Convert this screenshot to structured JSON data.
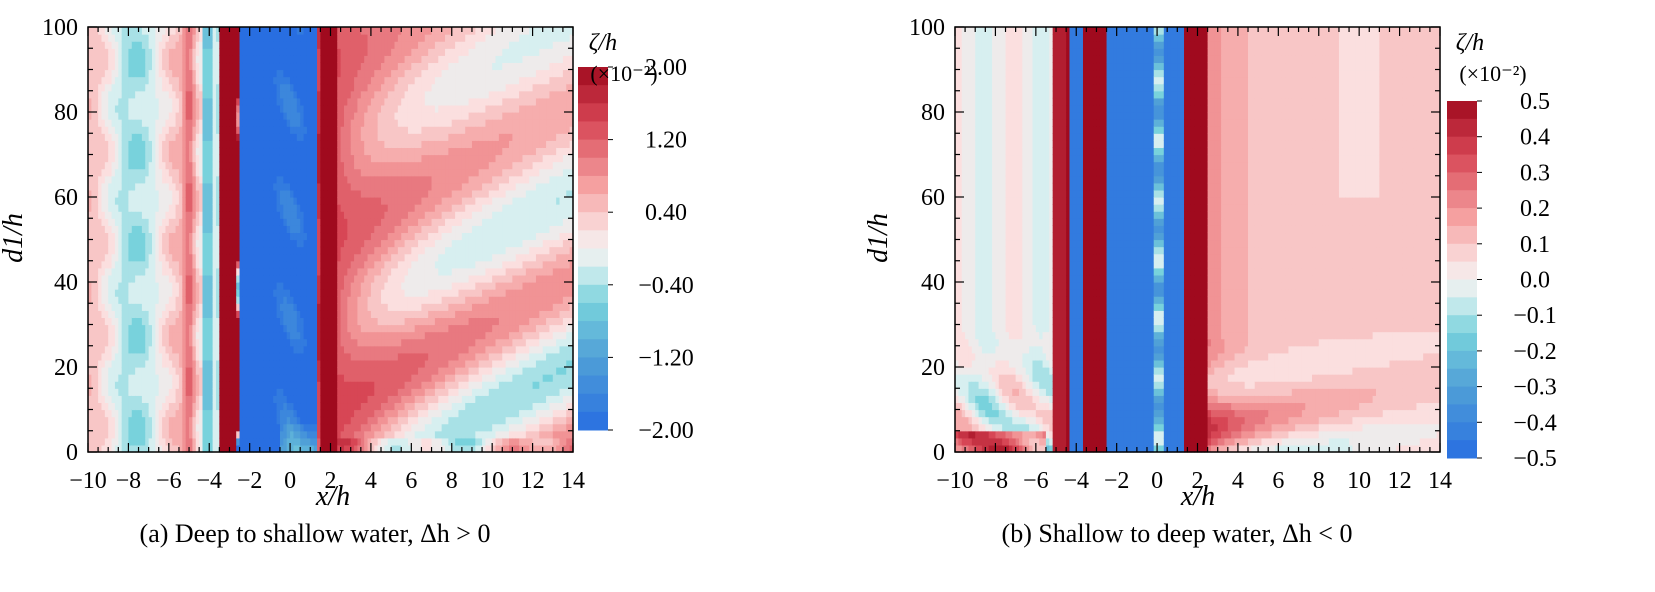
{
  "chart_data": [
    {
      "type": "heatmap",
      "caption": "(a) Deep to shallow water, Δh > 0",
      "xlabel": "x/h",
      "ylabel": "d1/h",
      "xlim": [
        -10,
        14
      ],
      "ylim": [
        0,
        100
      ],
      "xticks": [
        "−10",
        "−8",
        "−6",
        "−4",
        "−2",
        "0",
        "2",
        "4",
        "6",
        "8",
        "10",
        "12",
        "14"
      ],
      "yticks": [
        "0",
        "20",
        "40",
        "60",
        "80",
        "100"
      ],
      "colorbar": {
        "title": "ζ/h",
        "unit": "(×10⁻²)",
        "range": [
          -2.0,
          2.0
        ],
        "tick_labels": [
          "2.00",
          "1.20",
          "0.40",
          "−0.40",
          "−1.20",
          "−2.00"
        ],
        "tick_values": [
          2.0,
          1.2,
          0.4,
          -0.4,
          -1.2,
          -2.0
        ],
        "levels": 20
      },
      "features": [
        {
          "x_range": [
            -10,
            -4.5
          ],
          "kind": "weak alternating pink/cyan bands",
          "level": 0.3
        },
        {
          "x_range": [
            -4.5,
            -3.6
          ],
          "kind": "negative strip",
          "level": -0.8
        },
        {
          "x_range": [
            -3.4,
            -2.6
          ],
          "kind": "strong positive strip",
          "level": 2.0
        },
        {
          "x_range": [
            -2.4,
            1.2
          ],
          "kind": "strong negative strip",
          "level": -2.0
        },
        {
          "x_range": [
            1.6,
            2.4
          ],
          "kind": "strong positive strip",
          "level": 2.0
        },
        {
          "x_range": [
            2.4,
            14
          ],
          "kind": "inclined positive/negative bands rising to the right",
          "level": 1.0
        }
      ]
    },
    {
      "type": "heatmap",
      "caption": "(b) Shallow to deep water, Δh < 0",
      "xlabel": "x/h",
      "ylabel": "d1/h",
      "xlim": [
        -10,
        14
      ],
      "ylim": [
        0,
        100
      ],
      "xticks": [
        "−10",
        "−8",
        "−6",
        "−4",
        "−2",
        "0",
        "2",
        "4",
        "6",
        "8",
        "10",
        "12",
        "14"
      ],
      "yticks": [
        "0",
        "20",
        "40",
        "60",
        "80",
        "100"
      ],
      "colorbar": {
        "title": "ζ/h",
        "unit": "(×10⁻²)",
        "range": [
          -0.5,
          0.5
        ],
        "tick_labels": [
          "0.5",
          "0.4",
          "0.3",
          "0.2",
          "0.1",
          "0.0",
          "−0.1",
          "−0.2",
          "−0.3",
          "−0.4",
          "−0.5"
        ],
        "tick_values": [
          0.5,
          0.4,
          0.3,
          0.2,
          0.1,
          0.0,
          -0.1,
          -0.2,
          -0.3,
          -0.4,
          -0.5
        ],
        "levels": 20
      },
      "features": [
        {
          "x_range": [
            -10,
            -5
          ],
          "kind": "weak alternating bands",
          "level": 0.05
        },
        {
          "x_range": [
            -5.2,
            -4.6
          ],
          "kind": "positive strip",
          "level": 0.5
        },
        {
          "x_range": [
            -4.4,
            -3.6
          ],
          "kind": "negative strip",
          "level": -0.5
        },
        {
          "x_range": [
            -3.4,
            -2.6
          ],
          "kind": "strong positive strip",
          "level": 0.5
        },
        {
          "x_range": [
            -2.4,
            1.2
          ],
          "kind": "strong negative strip",
          "level": -0.5
        },
        {
          "x_range": [
            1.4,
            2.4
          ],
          "kind": "strong positive strip",
          "level": 0.5
        },
        {
          "x_range": [
            2.4,
            14
          ],
          "kind": "weak positive field with bands near d1/h 0-25",
          "level": 0.15
        }
      ]
    }
  ]
}
